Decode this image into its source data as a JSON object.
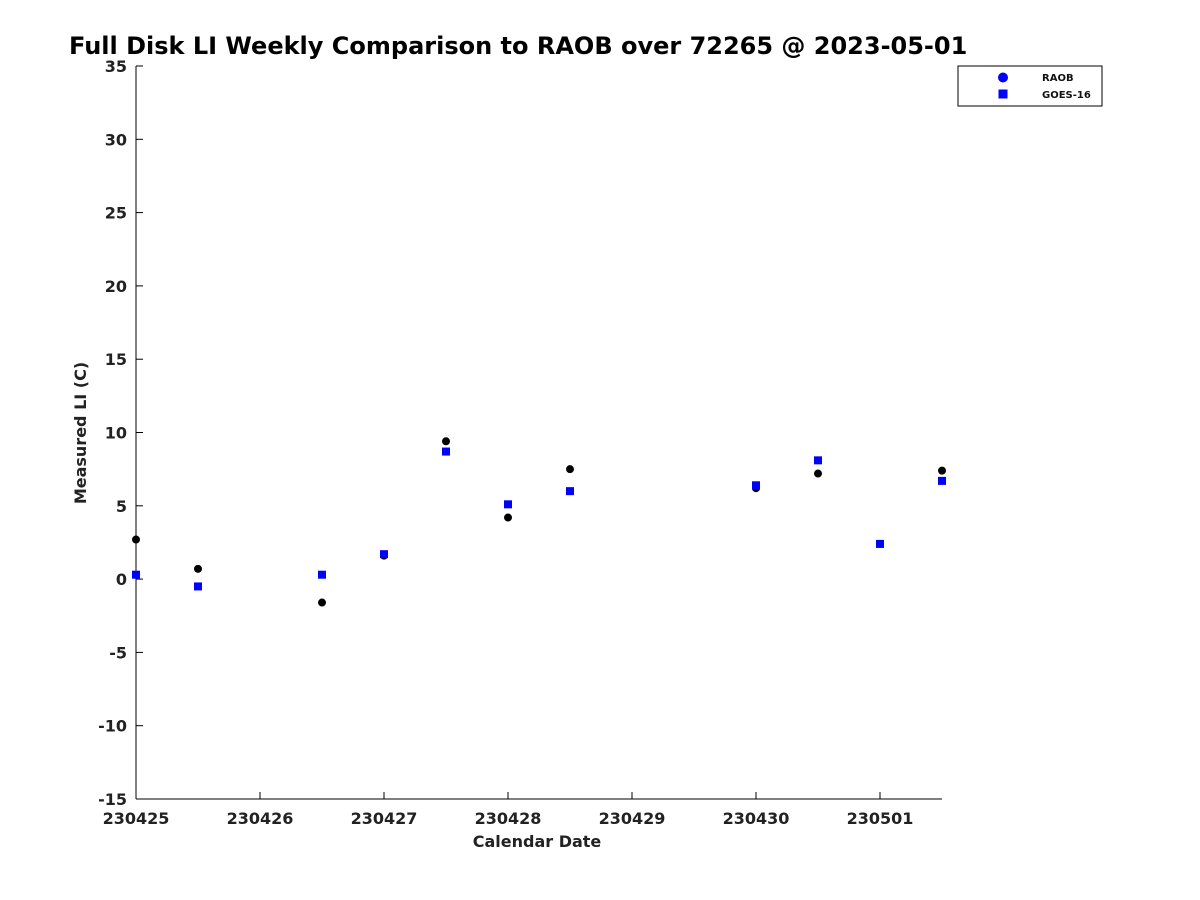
{
  "chart_data": {
    "type": "scatter",
    "title": "Full Disk LI Weekly Comparison to RAOB over 72265 @ 2023-05-01",
    "xlabel": "Calendar Date",
    "ylabel": "Measured LI (C)",
    "xlim": [
      0,
      6.5
    ],
    "ylim": [
      -15,
      35
    ],
    "x_ticks": [
      0,
      1,
      2,
      3,
      4,
      5,
      6
    ],
    "x_tick_labels": [
      "230425",
      "230426",
      "230427",
      "230428",
      "230429",
      "230430",
      "230501"
    ],
    "y_ticks": [
      -15,
      -10,
      -5,
      0,
      5,
      10,
      15,
      20,
      25,
      30,
      35
    ],
    "y_tick_labels": [
      "-15",
      "-10",
      "-5",
      "0",
      "5",
      "10",
      "15",
      "20",
      "25",
      "30",
      "35"
    ],
    "grid": false,
    "legend_position": "top-right",
    "series": [
      {
        "name": "RAOB",
        "marker": "circle",
        "color": "#000000",
        "legend_color": "#0000ff",
        "x": [
          0,
          0.5,
          1.5,
          2,
          2.5,
          3,
          3.5,
          5,
          5.5,
          6,
          6.5
        ],
        "values": [
          2.7,
          0.7,
          -1.6,
          1.6,
          9.4,
          4.2,
          7.5,
          6.2,
          7.2,
          2.4,
          7.4
        ]
      },
      {
        "name": "GOES-16",
        "marker": "square",
        "color": "#0000ff",
        "legend_color": "#0000ff",
        "x": [
          0,
          0.5,
          1.5,
          2,
          2.5,
          3,
          3.5,
          5,
          5.5,
          6,
          6.5
        ],
        "values": [
          0.3,
          -0.5,
          0.3,
          1.7,
          8.7,
          5.1,
          6.0,
          6.4,
          8.1,
          2.4,
          6.7
        ]
      }
    ]
  }
}
